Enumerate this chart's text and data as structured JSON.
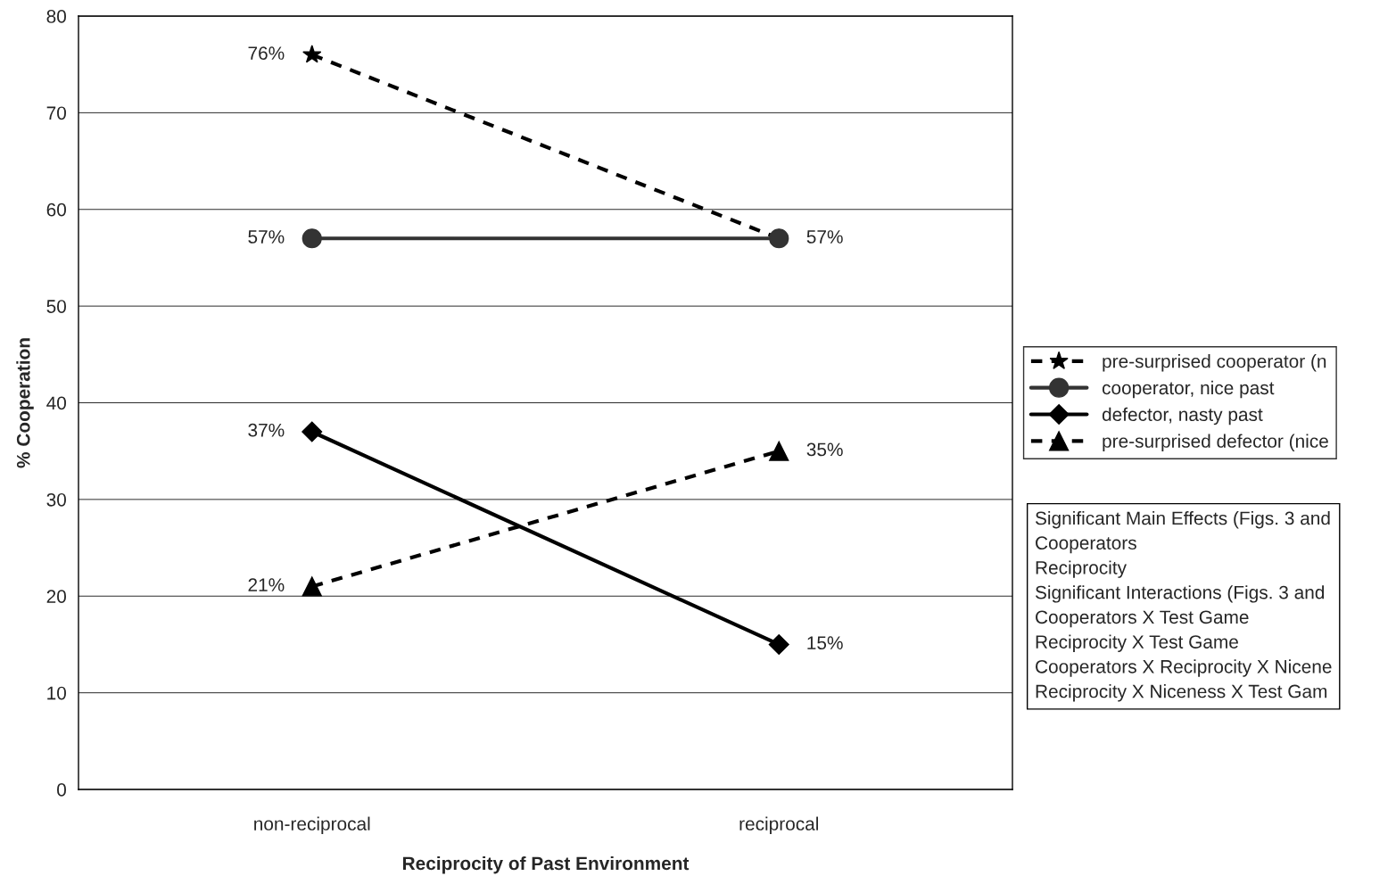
{
  "chart_data": {
    "type": "line",
    "xlabel": "Reciprocity of Past Environment",
    "ylabel": "% Cooperation",
    "categories": [
      "non-reciprocal",
      "reciprocal"
    ],
    "series": [
      {
        "name": "pre-surprised cooperator (n",
        "color": "#000000",
        "values": [
          76,
          57
        ],
        "marker": "star",
        "line_style": "dashed",
        "value_labels": [
          "76%",
          null
        ]
      },
      {
        "name": "cooperator, nice past",
        "color": "#333333",
        "values": [
          57,
          57
        ],
        "marker": "circle",
        "line_style": "solid",
        "value_labels": [
          "57%",
          "57%"
        ]
      },
      {
        "name": "defector, nasty past",
        "color": "#000000",
        "values": [
          37,
          15
        ],
        "marker": "diamond",
        "line_style": "solid",
        "value_labels": [
          "37%",
          "15%"
        ]
      },
      {
        "name": "pre-surprised defector (nice",
        "color": "#000000",
        "values": [
          21,
          35
        ],
        "marker": "triangle",
        "line_style": "dashed",
        "value_labels": [
          "21%",
          "35%"
        ]
      }
    ],
    "ylim": [
      0,
      80
    ],
    "yticks": [
      0,
      10,
      20,
      30,
      40,
      50,
      60,
      70,
      80
    ],
    "grid": "y",
    "legend": "right",
    "annotations": [
      "Significant Main Effects (Figs. 3 and",
      "Cooperators",
      "Reciprocity",
      "Significant Interactions (Figs. 3 and",
      "Cooperators X Test Game",
      "Reciprocity X Test Game",
      "Cooperators X Reciprocity X Nicene",
      "Reciprocity X Niceness X Test Gam"
    ]
  }
}
